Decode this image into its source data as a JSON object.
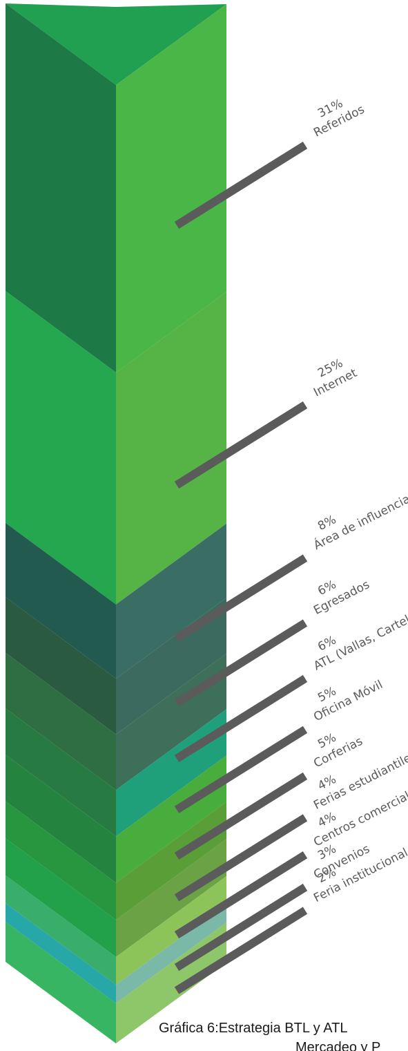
{
  "chart_data": {
    "type": "stacked-column-3d",
    "series": [
      {
        "label": "Referidos",
        "value": 31,
        "value_text": "31%",
        "colors": {
          "top": "#20a050",
          "front": "#1d7a47",
          "side": "#4ab648"
        }
      },
      {
        "label": "Internet",
        "value": 25,
        "value_text": "25%",
        "colors": {
          "top": "#22a24c",
          "front": "#24a74e",
          "side": "#56b447"
        }
      },
      {
        "label": "Área de influencia",
        "value": 8,
        "value_text": "8%",
        "colors": {
          "top": "#2a5f57",
          "front": "#225a4f",
          "side": "#3a6d63"
        }
      },
      {
        "label": "Egresados",
        "value": 6,
        "value_text": "6%",
        "colors": {
          "top": "#2e5a45",
          "front": "#2a5a40",
          "side": "#3c6a5e"
        }
      },
      {
        "label": "ATL (Vallas, Carteles, Prensa)",
        "value": 6,
        "value_text": "6%",
        "colors": {
          "top": "#2b6a47",
          "front": "#2e6e42",
          "side": "#3d6f5a"
        }
      },
      {
        "label": "Oficina Móvil",
        "value": 5,
        "value_text": "5%",
        "colors": {
          "top": "#237c45",
          "front": "#277a41",
          "side": "#1fa07a"
        }
      },
      {
        "label": "Corferias",
        "value": 5,
        "value_text": "5%",
        "colors": {
          "top": "#2a8e3f",
          "front": "#24843f",
          "side": "#49ad3d"
        }
      },
      {
        "label": "Ferias estudiantiles",
        "value": 4,
        "value_text": "4%",
        "colors": {
          "top": "#2c9d44",
          "front": "#28963f",
          "side": "#5a9e37"
        }
      },
      {
        "label": "Centros comerciales",
        "value": 4,
        "value_text": "4%",
        "colors": {
          "top": "#28a050",
          "front": "#22a04a",
          "side": "#6aa245"
        }
      },
      {
        "label": "Convenios",
        "value": 3,
        "value_text": "3%",
        "colors": {
          "top": "#3aab68",
          "front": "#39ad6a",
          "side": "#8dc45a"
        }
      },
      {
        "label": "Feria institucional",
        "value": 2,
        "value_text": "2%",
        "colors": {
          "top": "#26a4a8",
          "front": "#27a7a8",
          "side": "#7ab8a8"
        }
      }
    ],
    "base_cap": {
      "front": "#38b562",
      "side": "#8dc76a"
    },
    "leader_color": "#5b5b5b",
    "caption": {
      "line1": "Gráfica 6:Estrategia BTL y ATL",
      "line2": "Mercadeo y P"
    }
  }
}
